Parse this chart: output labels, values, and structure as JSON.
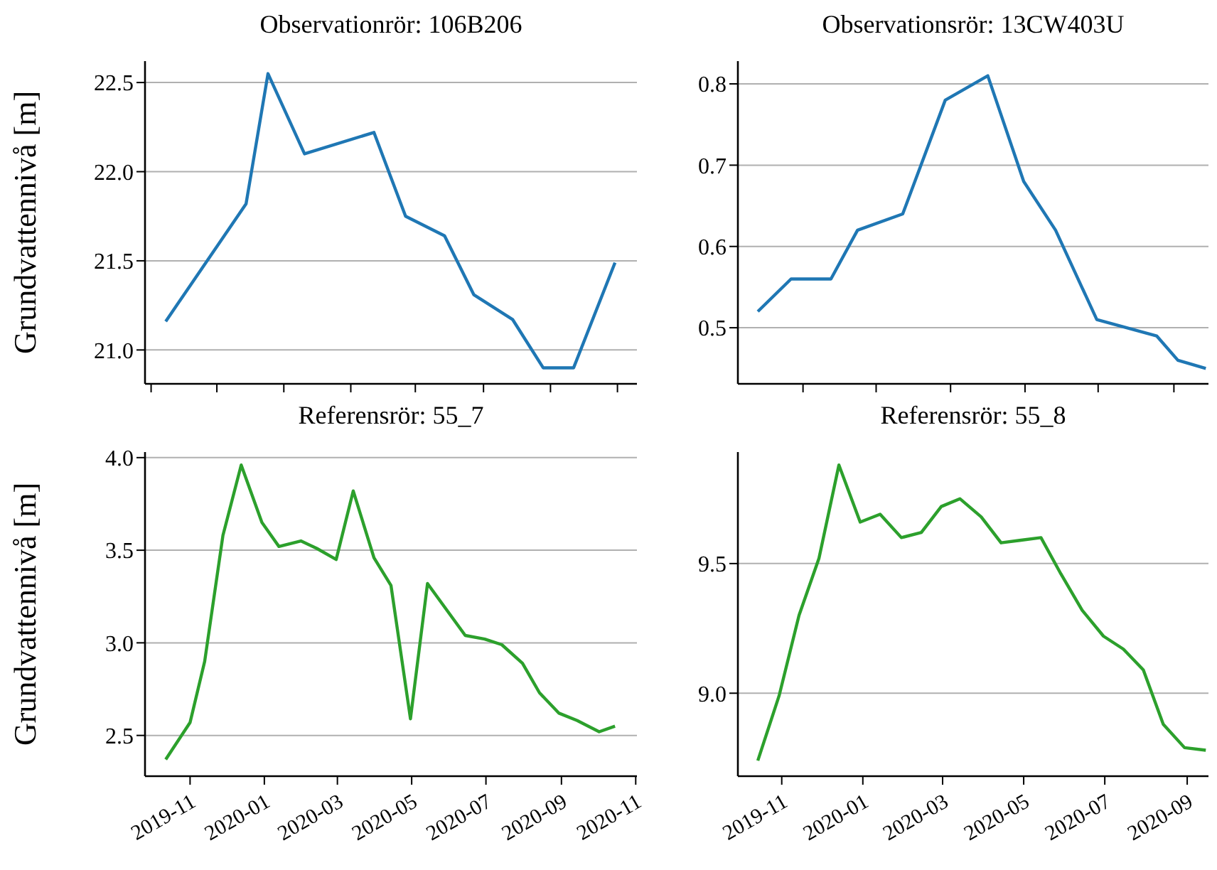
{
  "chart_data": [
    {
      "type": "line",
      "title": "Observationrör: 106B206",
      "ylabel": "Grundvattennivå [m]",
      "color": "#1f77b4",
      "grid": "y",
      "tick_labels": "y",
      "x": [
        "2019-10-12",
        "2019-12-17",
        "2020-01-04",
        "2020-02-03",
        "2020-03-31",
        "2020-04-26",
        "2020-05-28",
        "2020-06-21",
        "2020-07-23",
        "2020-08-17",
        "2020-09-11",
        "2020-10-15"
      ],
      "values": [
        21.16,
        21.82,
        22.55,
        22.1,
        22.22,
        21.75,
        21.64,
        21.31,
        21.17,
        20.9,
        20.9,
        21.49
      ],
      "xlim": [
        "2019-09-25",
        "2020-11-02"
      ],
      "ylim": [
        20.81,
        22.62
      ],
      "xticks": [
        {
          "value": "2019-09-30",
          "label": null
        },
        {
          "value": "2019-11-23",
          "label": null
        },
        {
          "value": "2020-01-17",
          "label": null
        },
        {
          "value": "2020-03-12",
          "label": null
        },
        {
          "value": "2020-05-04",
          "label": null
        },
        {
          "value": "2020-06-29",
          "label": null
        },
        {
          "value": "2020-08-23",
          "label": null
        },
        {
          "value": "2020-10-17",
          "label": null
        }
      ],
      "yticks": [
        {
          "value": 21,
          "label": "21.0"
        },
        21.5,
        {
          "value": 22,
          "label": "22.0"
        },
        22.5
      ]
    },
    {
      "type": "line",
      "title": "Observationsrör: 13CW403U",
      "color": "#1f77b4",
      "grid": "y",
      "tick_labels": "y",
      "x": [
        "2019-10-14",
        "2019-11-08",
        "2019-12-08",
        "2019-12-28",
        "2020-01-31",
        "2020-03-03",
        "2020-04-04",
        "2020-05-01",
        "2020-05-25",
        "2020-06-25",
        "2020-08-09",
        "2020-08-25",
        "2020-09-15"
      ],
      "values": [
        0.52,
        0.56,
        0.56,
        0.62,
        0.64,
        0.78,
        0.81,
        0.68,
        0.62,
        0.51,
        0.49,
        0.46,
        0.45
      ],
      "xlim": [
        "2019-09-29",
        "2020-09-17"
      ],
      "ylim": [
        0.431,
        0.828
      ],
      "xticks": [
        {
          "value": "2019-11-17",
          "label": null
        },
        {
          "value": "2020-01-11",
          "label": null
        },
        {
          "value": "2020-03-07",
          "label": null
        },
        {
          "value": "2020-05-02",
          "label": null
        },
        {
          "value": "2020-06-26",
          "label": null
        },
        {
          "value": "2020-08-22",
          "label": null
        }
      ],
      "yticks": [
        0.5,
        0.6,
        0.7,
        0.8
      ]
    },
    {
      "type": "line",
      "title": "Referensrör: 55_7",
      "ylabel": "Grundvattennivå [m]",
      "color": "#2ca02c",
      "grid": "y",
      "x": [
        "2019-10-12",
        "2019-11-01",
        "2019-11-13",
        "2019-11-28",
        "2019-12-13",
        "2019-12-30",
        "2020-01-13",
        "2020-01-31",
        "2020-02-13",
        "2020-02-29",
        "2020-03-14",
        "2020-03-31",
        "2020-04-14",
        "2020-04-30",
        "2020-05-14",
        "2020-06-14",
        "2020-06-30",
        "2020-07-14",
        "2020-07-31",
        "2020-08-14",
        "2020-08-30",
        "2020-09-14",
        "2020-10-02",
        "2020-10-15"
      ],
      "values": [
        2.37,
        2.57,
        2.9,
        3.58,
        3.96,
        3.65,
        3.52,
        3.55,
        3.51,
        3.45,
        3.82,
        3.46,
        3.31,
        2.59,
        3.32,
        3.04,
        3.02,
        2.99,
        2.89,
        2.73,
        2.62,
        2.58,
        2.52,
        2.55
      ],
      "xlim": [
        "2019-09-25",
        "2020-11-02"
      ],
      "ylim": [
        2.28,
        4.03
      ],
      "xticks": [
        {
          "value": "2019-11-01",
          "label": "2019-11"
        },
        {
          "value": "2020-01-01",
          "label": "2020-01"
        },
        {
          "value": "2020-03-01",
          "label": "2020-03"
        },
        {
          "value": "2020-05-01",
          "label": "2020-05"
        },
        {
          "value": "2020-07-01",
          "label": "2020-07"
        },
        {
          "value": "2020-09-01",
          "label": "2020-09"
        },
        {
          "value": "2020-11-01",
          "label": "2020-11"
        }
      ],
      "yticks": [
        2.5,
        {
          "value": 3,
          "label": "3.0"
        },
        3.5,
        {
          "value": 4,
          "label": "4.0"
        }
      ]
    },
    {
      "type": "line",
      "title": "Referensrör: 55_8",
      "color": "#2ca02c",
      "grid": "y",
      "x": [
        "2019-10-14",
        "2019-10-30",
        "2019-11-14",
        "2019-11-29",
        "2019-12-14",
        "2019-12-30",
        "2020-01-14",
        "2020-01-30",
        "2020-02-14",
        "2020-02-29",
        "2020-03-14",
        "2020-03-30",
        "2020-04-14",
        "2020-04-29",
        "2020-05-14",
        "2020-05-29",
        "2020-06-14",
        "2020-06-30",
        "2020-07-15",
        "2020-07-30",
        "2020-08-14",
        "2020-08-30",
        "2020-09-15"
      ],
      "values": [
        8.74,
        8.99,
        9.3,
        9.52,
        9.88,
        9.66,
        9.69,
        9.6,
        9.62,
        9.72,
        9.75,
        9.68,
        9.58,
        9.59,
        9.6,
        9.46,
        9.32,
        9.22,
        9.17,
        9.09,
        8.88,
        8.79,
        8.78
      ],
      "xlim": [
        "2019-09-29",
        "2020-09-17"
      ],
      "ylim": [
        8.68,
        9.93
      ],
      "xticks": [
        {
          "value": "2019-11-01",
          "label": "2019-11"
        },
        {
          "value": "2020-01-01",
          "label": "2020-01"
        },
        {
          "value": "2020-03-01",
          "label": "2020-03"
        },
        {
          "value": "2020-05-01",
          "label": "2020-05"
        },
        {
          "value": "2020-07-01",
          "label": "2020-07"
        },
        {
          "value": "2020-09-01",
          "label": "2020-09"
        }
      ],
      "yticks": [
        {
          "value": 9,
          "label": "9.0"
        },
        9.5
      ]
    }
  ]
}
